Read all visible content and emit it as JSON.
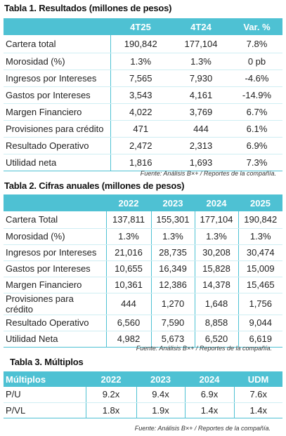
{
  "table1": {
    "title": "Tabla 1. Resultados (millones de pesos)",
    "headers": [
      "",
      "4T25",
      "4T24",
      "Var. %"
    ],
    "rows": [
      [
        "Cartera  total",
        "190,842",
        "177,104",
        "7.8%"
      ],
      [
        "Morosidad  (%)",
        "1.3%",
        "1.3%",
        "0 pb"
      ],
      [
        "Ingresos por Intereses",
        "7,565",
        "7,930",
        "-4.6%"
      ],
      [
        "Gastos por Intereses",
        "3,543",
        "4,161",
        "-14.9%"
      ],
      [
        "Margen Financiero",
        "4,022",
        "3,769",
        "6.7%"
      ],
      [
        "Provisiones para crédito",
        "471",
        "444",
        "6.1%"
      ],
      [
        "Resultado Operativo",
        "2,472",
        "2,313",
        "6.9%"
      ],
      [
        "Utilidad neta",
        "1,816",
        "1,693",
        "7.3%"
      ]
    ],
    "source": "Fuente: Análisis B×+ / Reportes de la compañía."
  },
  "table2": {
    "title": "Tabla 2. Cifras anuales (millones de pesos)",
    "headers": [
      "",
      "2022",
      "2023",
      "2024",
      "2025"
    ],
    "rows": [
      [
        "Cartera Total",
        "137,811",
        "155,301",
        "177,104",
        "190,842"
      ],
      [
        "Morosidad (%)",
        "1.3%",
        "1.3%",
        "1.3%",
        "1.3%"
      ],
      [
        "Ingresos por Intereses",
        "21,016",
        "28,735",
        "30,208",
        "30,474"
      ],
      [
        "Gastos por Intereses",
        "10,655",
        "16,349",
        "15,828",
        "15,009"
      ],
      [
        "Margen Financiero",
        "10,361",
        "12,386",
        "14,378",
        "15,465"
      ],
      [
        "Provisiones para crédito",
        "444",
        "1,270",
        "1,648",
        "1,756"
      ],
      [
        "Resultado Operativo",
        "6,560",
        "7,590",
        "8,858",
        "9,044"
      ],
      [
        "Utilidad Neta",
        "4,982",
        "5,673",
        "6,520",
        "6,619"
      ]
    ],
    "source": "Fuente: Análisis B×+ / Reportes de la compañía."
  },
  "table3": {
    "title": "Tabla 3. Múltiplos",
    "headers": [
      "Múltiplos",
      "2022",
      "2023",
      "2024",
      "UDM"
    ],
    "rows": [
      [
        "P/U",
        "9.2x",
        "9.4x",
        "6.9x",
        "7.6x"
      ],
      [
        "P/VL",
        "1.8x",
        "1.9x",
        "1.4x",
        "1.4x"
      ]
    ],
    "source": "Fuente: Análisis B×+ / Reportes de la compañía."
  },
  "colors": {
    "header_bg": "#4ec1d3",
    "header_text": "#ffffff"
  }
}
